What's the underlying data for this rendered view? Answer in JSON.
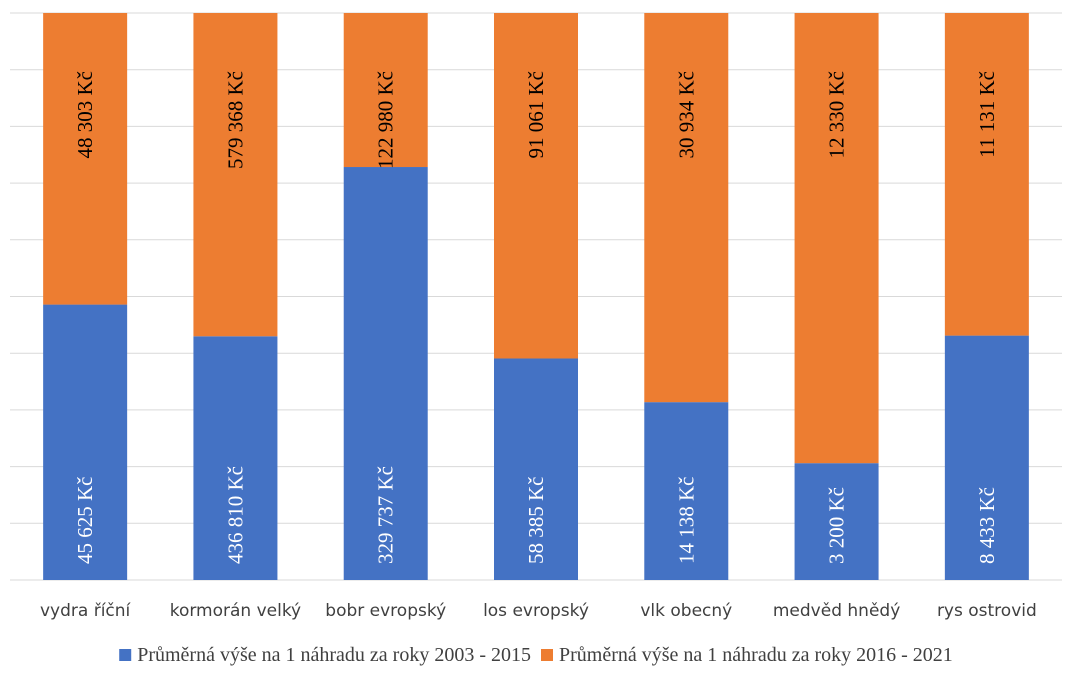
{
  "chart_data": {
    "type": "bar",
    "stacked": "percent",
    "orientation": "vertical",
    "categories": [
      "vydra říční",
      "kormorán velký",
      "bobr evropský",
      "los evropský",
      "vlk obecný",
      "medvěd hnědý",
      "rys ostrovid"
    ],
    "series": [
      {
        "name": "Průměrná výše na 1 náhradu za roky 2003 - 2015",
        "color": "#4472c4",
        "values": [
          45625,
          436810,
          329737,
          58385,
          14138,
          3200,
          8433
        ],
        "labels": [
          "45 625 Kč",
          "436 810 Kč",
          "329 737 Kč",
          "58 385 Kč",
          "14 138 Kč",
          "3 200 Kč",
          "8 433 Kč"
        ]
      },
      {
        "name": "Průměrná výše na 1 náhradu za roky 2016 - 2021",
        "color": "#ed7d31",
        "values": [
          48303,
          579368,
          122980,
          91061,
          30934,
          12330,
          11131
        ],
        "labels": [
          "48 303 Kč",
          "579 368 Kč",
          "122 980 Kč",
          "91 061 Kč",
          "30 934 Kč",
          "12 330 Kč",
          "11 131 Kč"
        ]
      }
    ],
    "grid": true,
    "legend_position": "bottom",
    "gridline_color": "#d9d9d9"
  }
}
